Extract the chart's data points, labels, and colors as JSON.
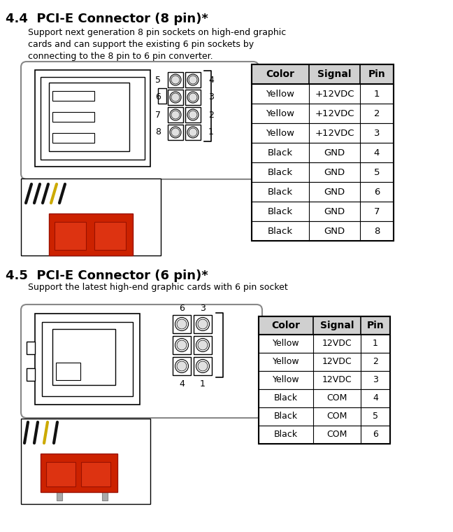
{
  "section1": {
    "title": "4.4  PCI-E Connector (8 pin)*",
    "description": "Support next generation 8 pin sockets on high-end graphic\ncards and can support the existing 6 pin sockets by\nconnecting to the 8 pin to 6 pin converter.",
    "table_headers": [
      "Color",
      "Signal",
      "Pin"
    ],
    "table_rows": [
      [
        "Yellow",
        "+12VDC",
        "1"
      ],
      [
        "Yellow",
        "+12VDC",
        "2"
      ],
      [
        "Yellow",
        "+12VDC",
        "3"
      ],
      [
        "Black",
        "GND",
        "4"
      ],
      [
        "Black",
        "GND",
        "5"
      ],
      [
        "Black",
        "GND",
        "6"
      ],
      [
        "Black",
        "GND",
        "7"
      ],
      [
        "Black",
        "GND",
        "8"
      ]
    ],
    "pin_labels_left": [
      "5",
      "6",
      "7",
      "8"
    ],
    "pin_labels_right": [
      "4",
      "3",
      "2",
      "1"
    ]
  },
  "section2": {
    "title": "4.5  PCI-E Connector (6 pin)*",
    "description": "Support the latest high-end graphic cards with 6 pin socket",
    "table_headers": [
      "Color",
      "Signal",
      "Pin"
    ],
    "table_rows": [
      [
        "Yellow",
        "12VDC",
        "1"
      ],
      [
        "Yellow",
        "12VDC",
        "2"
      ],
      [
        "Yellow",
        "12VDC",
        "3"
      ],
      [
        "Black",
        "COM",
        "4"
      ],
      [
        "Black",
        "COM",
        "5"
      ],
      [
        "Black",
        "COM",
        "6"
      ]
    ],
    "pin_labels_top": [
      "6",
      "3"
    ],
    "pin_labels_bottom": [
      "4",
      "1"
    ]
  }
}
